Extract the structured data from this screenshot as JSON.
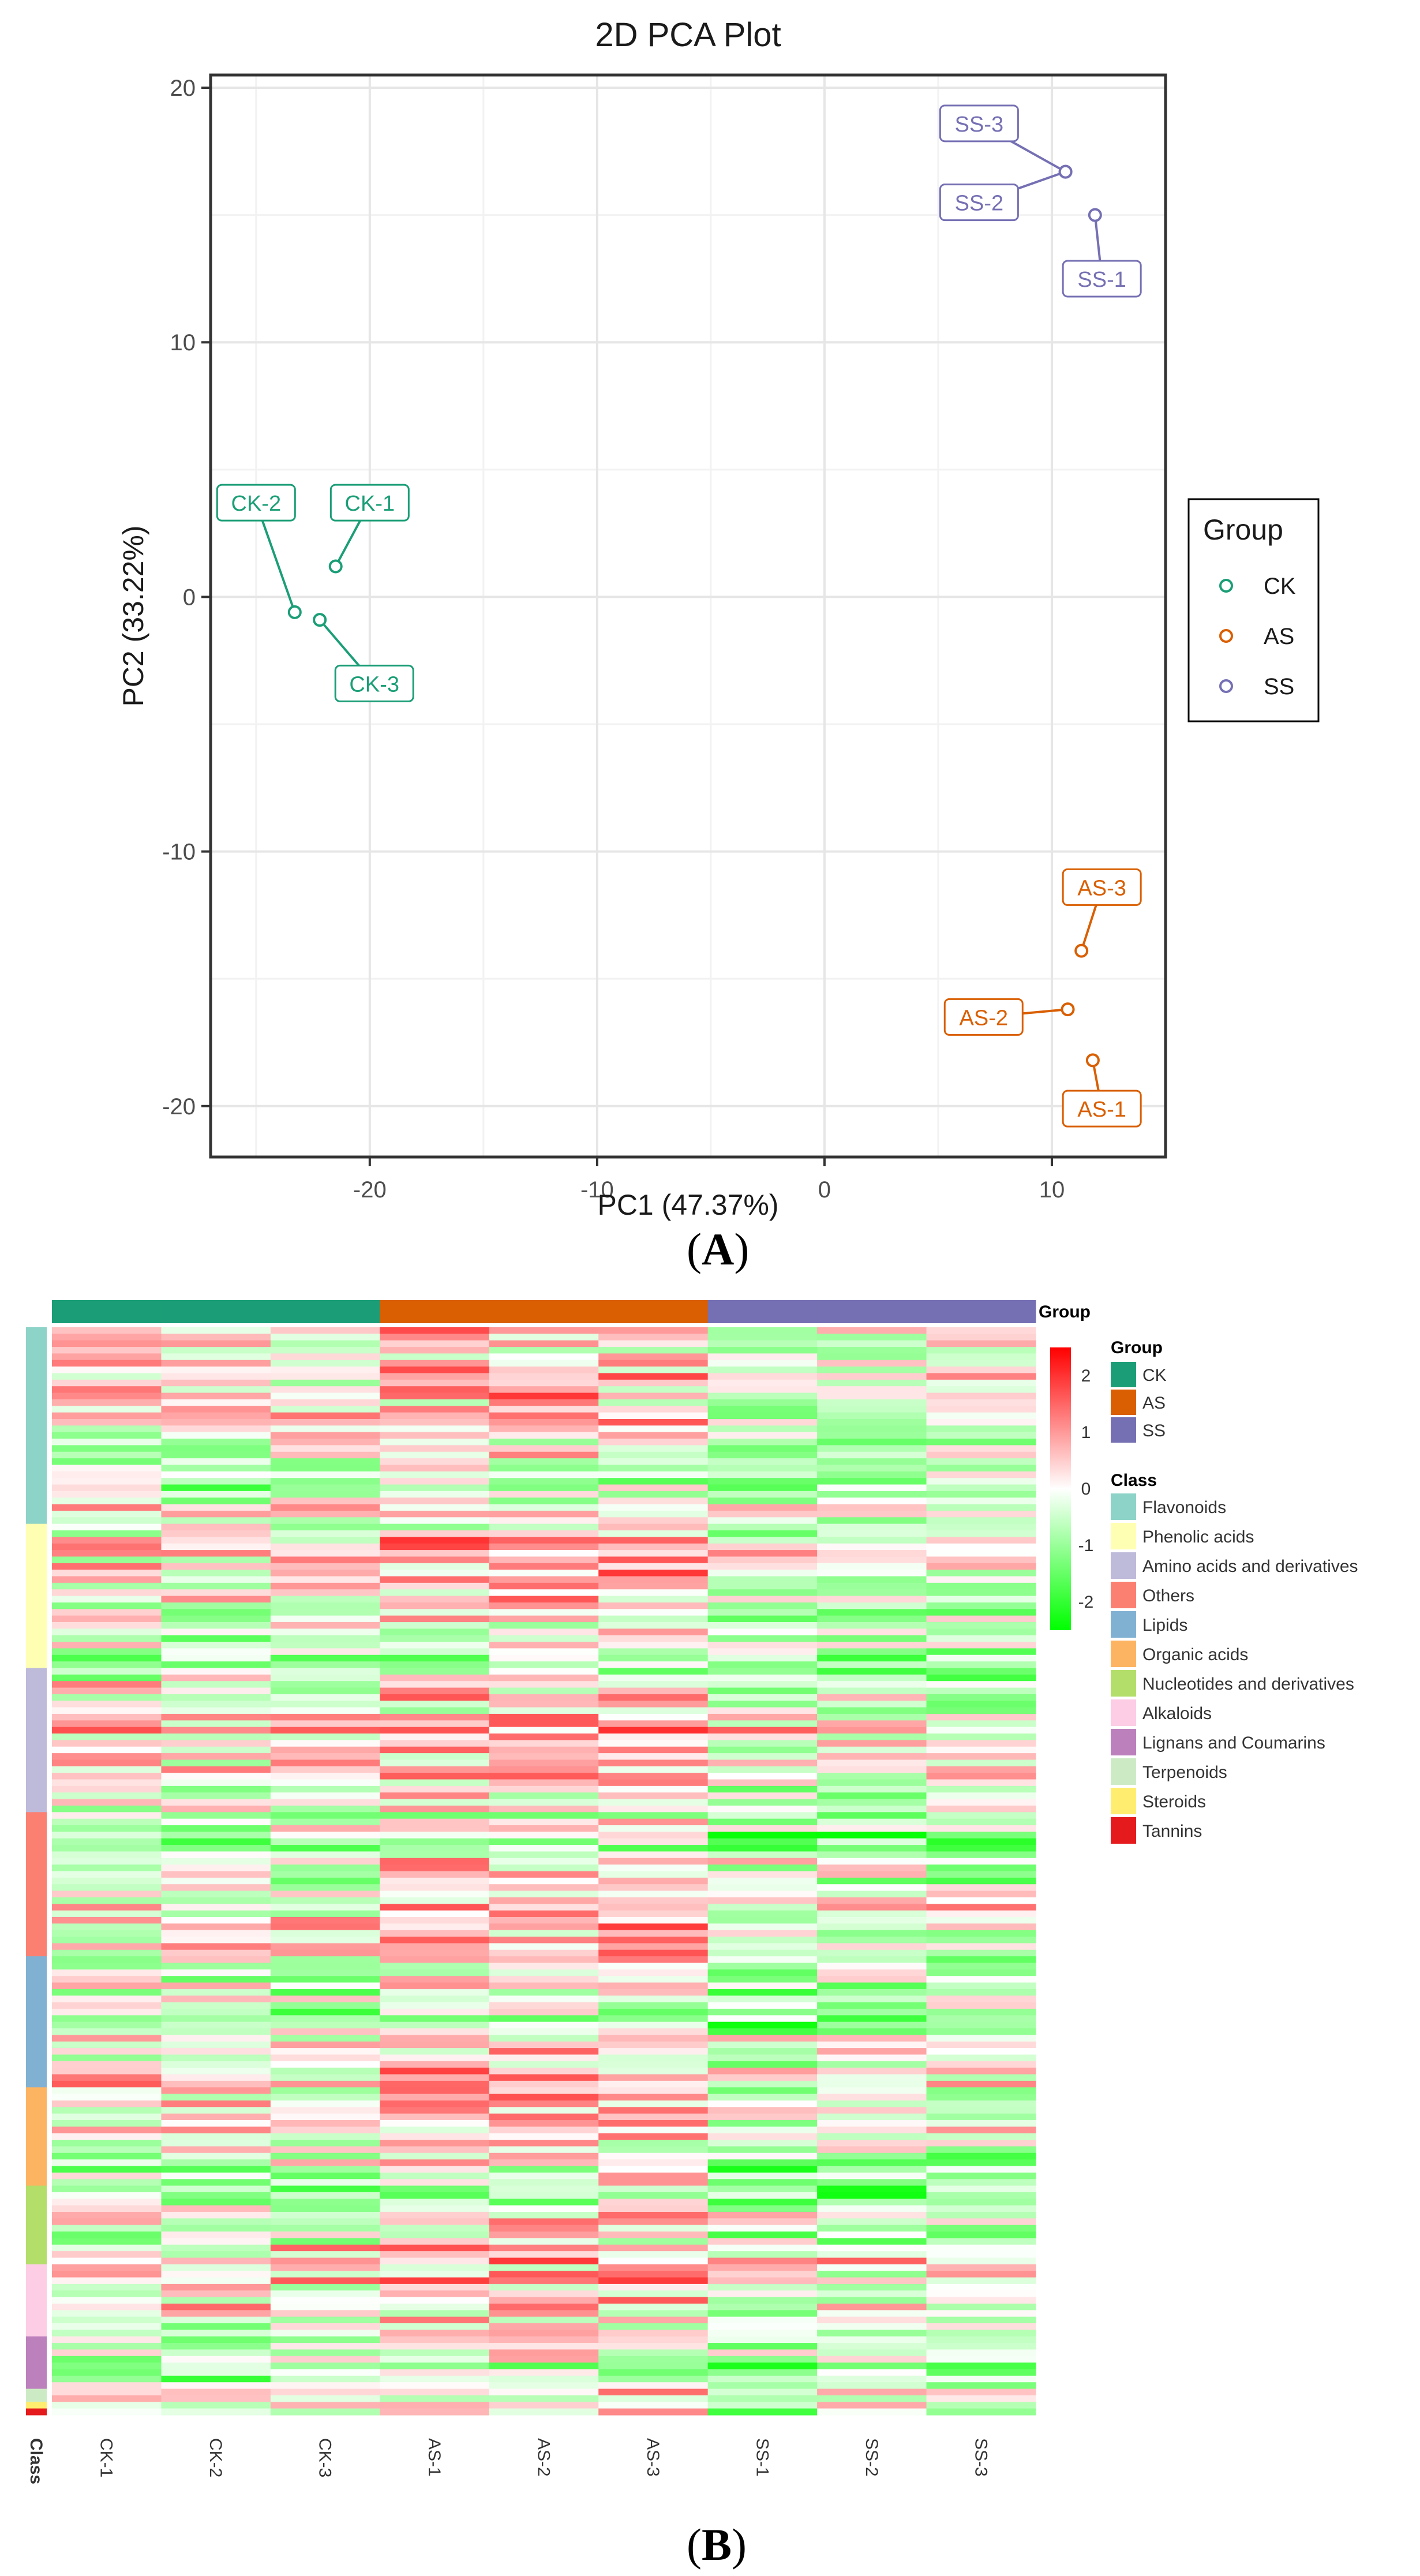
{
  "chart_data": [
    {
      "type": "scatter",
      "title": "2D PCA Plot",
      "xlabel": "PC1 (47.37%)",
      "ylabel": "PC2 (33.22%)",
      "xlim": [
        -27,
        15
      ],
      "ylim": [
        -22,
        20.5
      ],
      "x_ticks": [
        -20,
        -10,
        0,
        10
      ],
      "y_ticks": [
        -20,
        -10,
        0,
        10,
        20
      ],
      "grid": true,
      "legend": {
        "title": "Group",
        "position": "right",
        "entries": [
          "CK",
          "AS",
          "SS"
        ]
      },
      "series": [
        {
          "name": "CK",
          "color": "#1b9e77",
          "points": [
            {
              "label": "CK-1",
              "x": -21.5,
              "y": 1.2,
              "label_x": -20,
              "label_y": 3.7
            },
            {
              "label": "CK-2",
              "x": -23.3,
              "y": -0.6,
              "label_x": -25,
              "label_y": 3.7
            },
            {
              "label": "CK-3",
              "x": -22.2,
              "y": -0.9,
              "label_x": -19.8,
              "label_y": -3.4
            }
          ]
        },
        {
          "name": "AS",
          "color": "#d95f02",
          "points": [
            {
              "label": "AS-1",
              "x": 11.8,
              "y": -18.2,
              "label_x": 12.2,
              "label_y": -20.1
            },
            {
              "label": "AS-2",
              "x": 10.7,
              "y": -16.2,
              "label_x": 7.0,
              "label_y": -16.5
            },
            {
              "label": "AS-3",
              "x": 11.3,
              "y": -13.9,
              "label_x": 12.2,
              "label_y": -11.4
            }
          ]
        },
        {
          "name": "SS",
          "color": "#7570b3",
          "points": [
            {
              "label": "SS-1",
              "x": 11.9,
              "y": 15.0,
              "label_x": 12.2,
              "label_y": 12.5
            },
            {
              "label": "SS-2",
              "x": 10.6,
              "y": 16.7,
              "label_x": 6.8,
              "label_y": 15.5
            },
            {
              "label": "SS-3",
              "x": 10.6,
              "y": 16.7,
              "label_x": 6.8,
              "label_y": 18.6
            }
          ]
        }
      ]
    },
    {
      "type": "heatmap",
      "columns": [
        "CK-1",
        "CK-2",
        "CK-3",
        "AS-1",
        "AS-2",
        "AS-3",
        "SS-1",
        "SS-2",
        "SS-3"
      ],
      "column_groups": [
        "CK",
        "CK",
        "CK",
        "AS",
        "AS",
        "AS",
        "SS",
        "SS",
        "SS"
      ],
      "group_annotation_label": "Group",
      "class_annotation_label": "Class",
      "group_legend": {
        "title": "Group",
        "items": [
          {
            "name": "CK",
            "color": "#1b9e77"
          },
          {
            "name": "AS",
            "color": "#d95f02"
          },
          {
            "name": "SS",
            "color": "#7570b3"
          }
        ]
      },
      "class_legend": {
        "title": "Class",
        "items": [
          {
            "name": "Flavonoids",
            "color": "#8dd3c7",
            "rows": 30
          },
          {
            "name": "Phenolic acids",
            "color": "#ffffb3",
            "rows": 22
          },
          {
            "name": "Amino acids and derivatives",
            "color": "#bebada",
            "rows": 22
          },
          {
            "name": "Others",
            "color": "#fb8072",
            "rows": 22
          },
          {
            "name": "Lipids",
            "color": "#80b1d3",
            "rows": 20
          },
          {
            "name": "Organic acids",
            "color": "#fdb462",
            "rows": 15
          },
          {
            "name": "Nucleotides and derivatives",
            "color": "#b3de69",
            "rows": 12
          },
          {
            "name": "Alkaloids",
            "color": "#fccde5",
            "rows": 11
          },
          {
            "name": "Lignans and Coumarins",
            "color": "#bc80bd",
            "rows": 8
          },
          {
            "name": "Terpenoids",
            "color": "#ccebc5",
            "rows": 2
          },
          {
            "name": "Steroids",
            "color": "#ffed6f",
            "rows": 1
          },
          {
            "name": "Tannins",
            "color": "#e41a1c",
            "rows": 1
          }
        ]
      },
      "colorbar": {
        "min": -2.5,
        "max": 2.5,
        "ticks": [
          2,
          1,
          0,
          -1,
          -2
        ],
        "colors": [
          "#00ff00",
          "#ffffff",
          "#ff0000"
        ]
      },
      "column_patterns": [
        [
          0.45,
          -0.7,
          0.7,
          0.5,
          0.4,
          -0.1,
          -0.7,
          -0.7,
          -1.6
        ],
        [
          0.2,
          -0.45,
          1.5,
          0.85,
          0.35,
          -0.4,
          -0.5,
          -0.6,
          -1.9
        ],
        [
          0.35,
          0.95,
          0.3,
          -0.15,
          0.6,
          -0.35,
          -1.5,
          -1.8,
          -0.8
        ]
      ]
    }
  ],
  "panel_labels": {
    "a": "A",
    "b": "B"
  }
}
